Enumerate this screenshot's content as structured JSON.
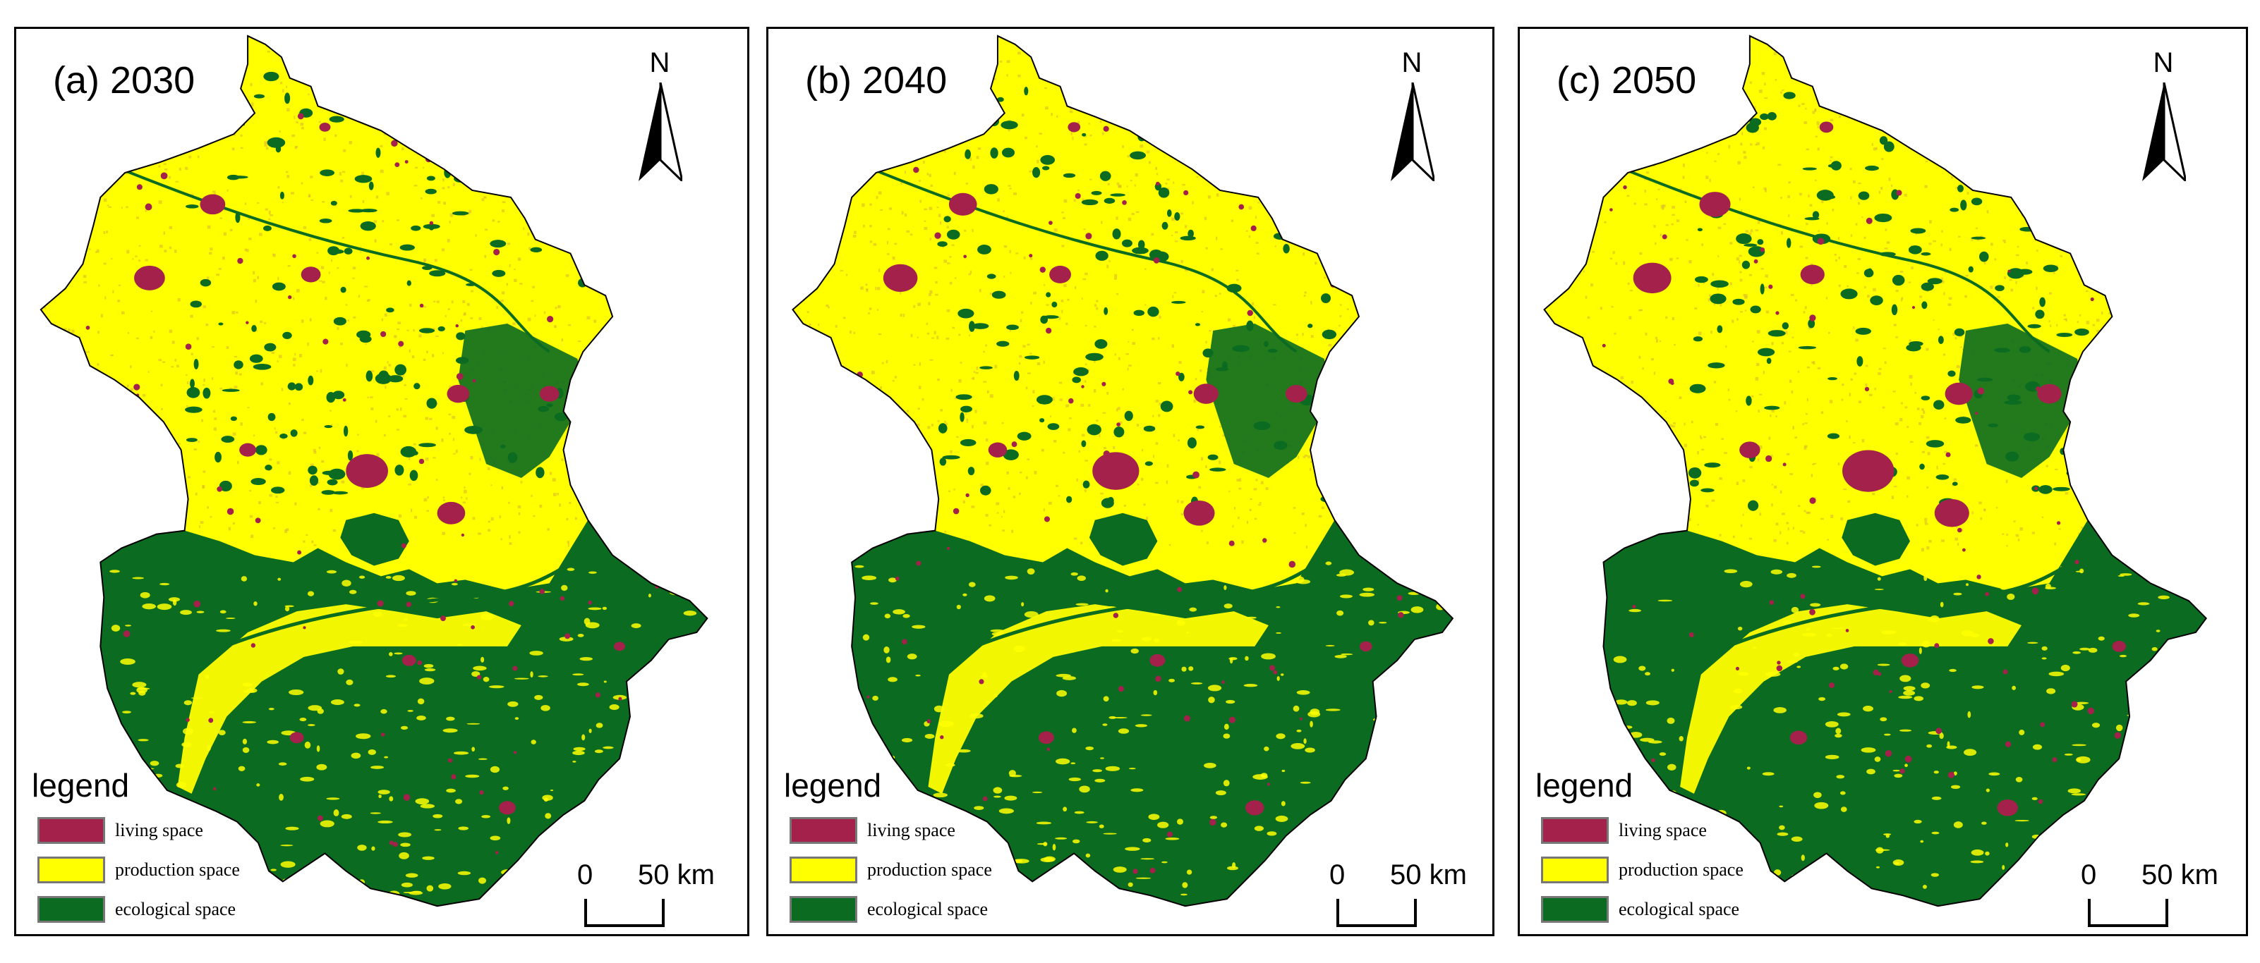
{
  "figure": {
    "panels": [
      {
        "id": "a",
        "title": "(a) 2030"
      },
      {
        "id": "b",
        "title": "(b) 2040"
      },
      {
        "id": "c",
        "title": "(c) 2050"
      }
    ],
    "north_label": "N",
    "legend": {
      "title": "legend",
      "items": [
        {
          "label": "living space",
          "color": "#a3214b"
        },
        {
          "label": "production space",
          "color": "#ffff00"
        },
        {
          "label": "ecological space",
          "color": "#0b6b20"
        }
      ]
    },
    "scale": {
      "zero": "0",
      "max": "50 km"
    }
  },
  "colors": {
    "living": "#a3214b",
    "production": "#ffff00",
    "production_texture": "#d8b52e",
    "ecological": "#0b6b20",
    "border": "#000000"
  }
}
